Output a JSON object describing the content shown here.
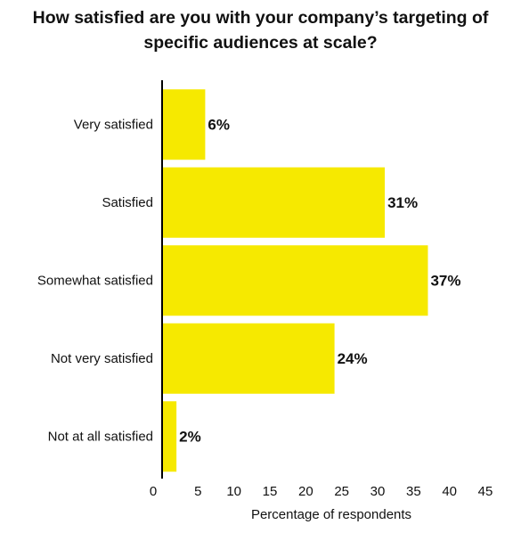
{
  "title": {
    "line1": "How satisfied are you with your company’s targeting of",
    "line2": "specific audiences at scale?"
  },
  "colors": {
    "bar": "#f6e900",
    "axis": "#000000",
    "text": "#111111"
  },
  "chart_data": {
    "type": "bar",
    "orientation": "horizontal",
    "title": "How satisfied are you with your company’s targeting of specific audiences at scale?",
    "xlabel": "Percentage of respondents",
    "ylabel": "",
    "categories": [
      "Very satisfied",
      "Satisfied",
      "Somewhat satisfied",
      "Not very satisfied",
      "Not at all satisfied"
    ],
    "values": [
      6,
      31,
      37,
      24,
      2
    ],
    "data_labels": [
      "6%",
      "31%",
      "37%",
      "24%",
      "2%"
    ],
    "xlim": [
      0,
      45
    ],
    "xticks": [
      0,
      5,
      10,
      15,
      20,
      25,
      30,
      35,
      40,
      45
    ],
    "grid": false,
    "legend": "none"
  }
}
